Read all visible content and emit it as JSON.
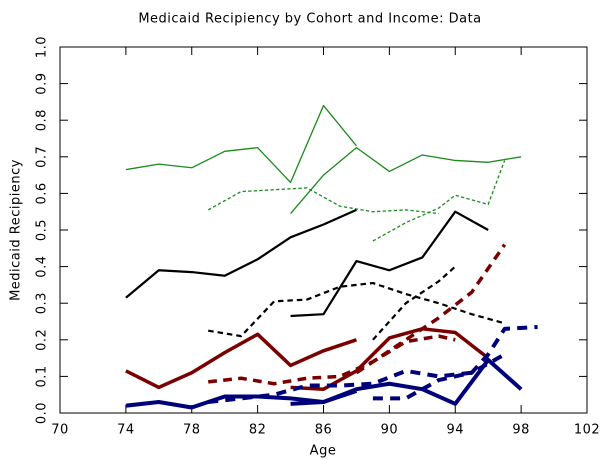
{
  "chart_data": {
    "type": "line",
    "title": "Medicaid Recipiency by Cohort and Income:  Data",
    "x_label": "Age",
    "y_label": "Medicaid Recipiency",
    "xlim": [
      70,
      102
    ],
    "xticks": [
      70,
      74,
      78,
      82,
      86,
      90,
      94,
      98,
      102
    ],
    "ylim": [
      0,
      1
    ],
    "yticks": [
      {
        "value": 0,
        "label": "0.0"
      },
      0.1,
      0.2,
      0.3,
      0.4,
      0.5,
      0.6,
      0.7,
      0.8,
      0.9,
      {
        "value": 1,
        "label": "1.0"
      }
    ],
    "series": [
      {
        "color": "#1a8a1a",
        "dashed": false,
        "width": 1.3,
        "x": [
          74,
          76,
          78,
          80,
          82,
          84,
          86,
          88
        ],
        "values": [
          0.665,
          0.68,
          0.67,
          0.715,
          0.725,
          0.63,
          0.84,
          0.73
        ]
      },
      {
        "color": "#1a8a1a",
        "dashed": false,
        "width": 1.3,
        "x": [
          84,
          86,
          88,
          90,
          92,
          94,
          96,
          98
        ],
        "values": [
          0.545,
          0.65,
          0.725,
          0.66,
          0.705,
          0.69,
          0.685,
          0.7
        ]
      },
      {
        "color": "#1a8a1a",
        "dashed": true,
        "width": 1.3,
        "x": [
          79,
          81,
          83,
          85,
          87,
          89,
          91,
          93
        ],
        "values": [
          0.555,
          0.605,
          0.61,
          0.615,
          0.565,
          0.55,
          0.555,
          0.545
        ]
      },
      {
        "color": "#1a8a1a",
        "dashed": true,
        "width": 1.3,
        "x": [
          89,
          91,
          93,
          94,
          96,
          97
        ],
        "values": [
          0.47,
          0.52,
          0.56,
          0.595,
          0.57,
          0.69
        ]
      },
      {
        "color": "#000000",
        "dashed": false,
        "width": 2.2,
        "x": [
          74,
          76,
          78,
          80,
          82,
          84,
          86,
          88
        ],
        "values": [
          0.315,
          0.39,
          0.385,
          0.375,
          0.42,
          0.48,
          0.515,
          0.555
        ]
      },
      {
        "color": "#000000",
        "dashed": false,
        "width": 2.2,
        "x": [
          84,
          86,
          88,
          90,
          92,
          94,
          96
        ],
        "values": [
          0.265,
          0.27,
          0.415,
          0.39,
          0.425,
          0.55,
          0.5
        ]
      },
      {
        "color": "#000000",
        "dashed": true,
        "width": 2.2,
        "x": [
          79,
          81,
          83,
          85,
          87,
          89,
          91,
          93,
          95,
          97
        ],
        "values": [
          0.225,
          0.21,
          0.305,
          0.31,
          0.345,
          0.355,
          0.325,
          0.3,
          0.27,
          0.245
        ]
      },
      {
        "color": "#000000",
        "dashed": true,
        "width": 2.2,
        "x": [
          89,
          91,
          93,
          94
        ],
        "values": [
          0.2,
          0.3,
          0.36,
          0.4
        ]
      },
      {
        "color": "#7a0000",
        "dashed": false,
        "width": 3.5,
        "x": [
          74,
          76,
          78,
          80,
          82,
          84,
          86,
          88
        ],
        "values": [
          0.115,
          0.07,
          0.11,
          0.165,
          0.215,
          0.13,
          0.17,
          0.2
        ]
      },
      {
        "color": "#7a0000",
        "dashed": false,
        "width": 3.5,
        "x": [
          84,
          86,
          88,
          90,
          92,
          94,
          96
        ],
        "values": [
          0.07,
          0.065,
          0.115,
          0.205,
          0.23,
          0.22,
          0.15
        ]
      },
      {
        "color": "#7a0000",
        "dashed": true,
        "width": 3.5,
        "x": [
          79,
          81,
          83,
          85,
          87,
          89,
          91,
          93,
          94
        ],
        "values": [
          0.085,
          0.095,
          0.08,
          0.095,
          0.1,
          0.14,
          0.195,
          0.21,
          0.2
        ]
      },
      {
        "color": "#7a0000",
        "dashed": true,
        "width": 3.5,
        "x": [
          88,
          90,
          92,
          93,
          95,
          97
        ],
        "values": [
          0.11,
          0.17,
          0.23,
          0.26,
          0.33,
          0.46
        ]
      },
      {
        "color": "#00007a",
        "dashed": false,
        "width": 4,
        "x": [
          74,
          76,
          78,
          80,
          82,
          84,
          86,
          88
        ],
        "values": [
          0.02,
          0.03,
          0.015,
          0.045,
          0.045,
          0.04,
          0.03,
          0.06
        ]
      },
      {
        "color": "#00007a",
        "dashed": false,
        "width": 4,
        "x": [
          84,
          86,
          88,
          90,
          92,
          94,
          96,
          98
        ],
        "values": [
          0.025,
          0.03,
          0.065,
          0.08,
          0.065,
          0.025,
          0.145,
          0.065
        ]
      },
      {
        "color": "#00007a",
        "dashed": true,
        "width": 4,
        "x": [
          79,
          81,
          83,
          85,
          87,
          89,
          91,
          93,
          95,
          97
        ],
        "values": [
          0.03,
          0.04,
          0.05,
          0.075,
          0.075,
          0.08,
          0.115,
          0.1,
          0.11,
          0.16
        ]
      },
      {
        "color": "#00007a",
        "dashed": true,
        "width": 4,
        "x": [
          89,
          91,
          93,
          95,
          96,
          97,
          99
        ],
        "values": [
          0.04,
          0.04,
          0.09,
          0.11,
          0.16,
          0.23,
          0.235
        ]
      }
    ]
  }
}
